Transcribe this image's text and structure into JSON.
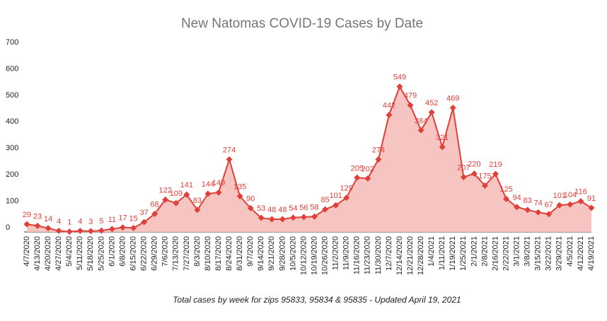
{
  "chart_data": {
    "type": "line",
    "title": "New Natomas COVID-19 Cases by Date",
    "subtitle": "Total cases by week for zips 95833, 95834 & 95835 - Updated April 19, 2021",
    "categories": [
      "4/7/2020",
      "4/13/2020",
      "4/20/2020",
      "4/27/2020",
      "5/4/2020",
      "5/11/2020",
      "5/18/2020",
      "5/25/2020",
      "6/1/2020",
      "6/8/2020",
      "6/15/2020",
      "6/22/2020",
      "6/29/2020",
      "7/6/2020",
      "7/13/2020",
      "7/27/2020",
      "8/3/2020",
      "8/10/2020",
      "8/17/2020",
      "8/24/2020",
      "8/31/2020",
      "9/7/2020",
      "9/14/2020",
      "9/21/2020",
      "9/28/2020",
      "10/5/2020",
      "10/12/2020",
      "10/19/2020",
      "10/26/2020",
      "11/2/2020",
      "11/9/2020",
      "11/16/2020",
      "11/23/2020",
      "11/30/2020",
      "12/7/2020",
      "12/14/2020",
      "12/21/2020",
      "12/28/2020",
      "1/4/2021",
      "1/11/2021",
      "1/19/2021",
      "1/25/2021",
      "2/1/2021",
      "2/8/2021",
      "2/16/2021",
      "2/22/2021",
      "3/1/2021",
      "3/8/2021",
      "3/15/2021",
      "3/22/2021",
      "3/29/2021",
      "4/5/2021",
      "4/12/2021",
      "4/19/2021"
    ],
    "series": [
      {
        "name": "Cases",
        "color": "#e0403a",
        "fill": "#f7c5c1",
        "values": [
          29,
          23,
          14,
          4,
          1,
          4,
          3,
          5,
          11,
          17,
          15,
          37,
          68,
          122,
          109,
          141,
          83,
          144,
          149,
          274,
          135,
          90,
          53,
          48,
          48,
          54,
          56,
          58,
          85,
          101,
          129,
          205,
          202,
          274,
          442,
          549,
          479,
          384,
          452,
          321,
          469,
          207,
          220,
          175,
          219,
          125,
          94,
          83,
          74,
          67,
          101,
          104,
          116,
          91
        ]
      }
    ],
    "ylim": [
      0,
      700
    ],
    "yticks": [
      0,
      100,
      200,
      300,
      400,
      500,
      600,
      700
    ],
    "grid": false
  }
}
